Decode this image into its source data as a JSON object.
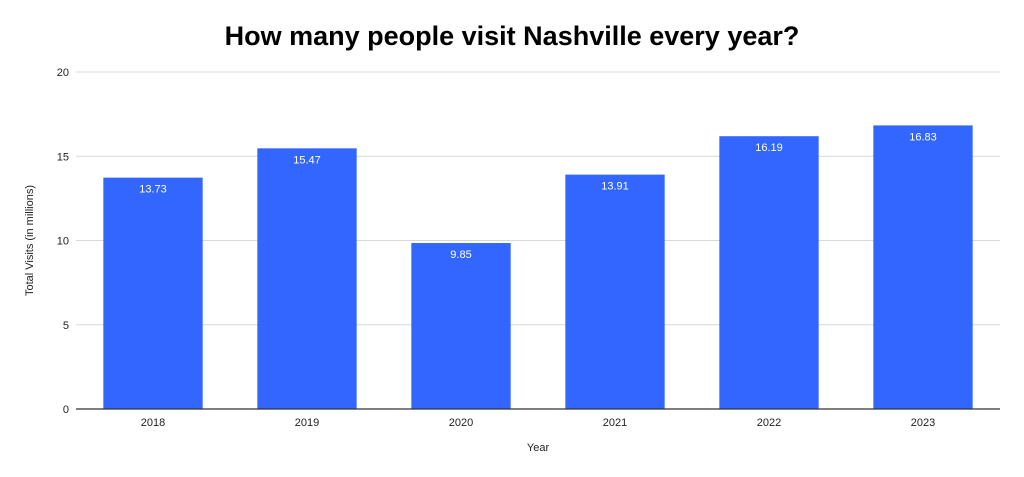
{
  "chart_data": {
    "type": "bar",
    "title": "How many people visit Nashville every year?",
    "xlabel": "Year",
    "ylabel": "Total Visits (in millions)",
    "categories": [
      "2018",
      "2019",
      "2020",
      "2021",
      "2022",
      "2023"
    ],
    "values": [
      13.73,
      15.47,
      9.85,
      13.91,
      16.19,
      16.83
    ],
    "data_labels": [
      "13.73",
      "15.47",
      "9.85",
      "13.91",
      "16.19",
      "16.83"
    ],
    "ylim": [
      0,
      20
    ],
    "yticks": [
      0,
      5,
      10,
      15,
      20
    ],
    "ytick_labels": [
      "0",
      "5",
      "10",
      "15",
      "20"
    ],
    "grid": true,
    "legend": "none",
    "colors": {
      "bar": "#3366ff",
      "grid": "#d9d9d9",
      "axis": "#333333"
    }
  }
}
